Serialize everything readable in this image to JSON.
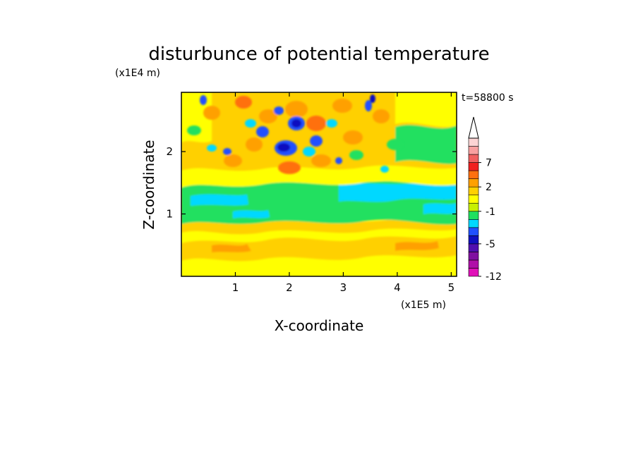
{
  "chart_data": {
    "type": "heatmap",
    "title": "disturbunce of potential temperature",
    "xlabel": "X-coordinate",
    "ylabel": "Z-coordinate",
    "x_unit_label": "(x1E5 m)",
    "y_unit_label": "(x1E4 m)",
    "time_label": "t=58800 s",
    "xlim": [
      0,
      5.1
    ],
    "ylim": [
      0,
      2.95
    ],
    "x_ticks": [
      1,
      2,
      3,
      4,
      5
    ],
    "y_ticks": [
      1,
      2
    ],
    "x_tick_labels": [
      "1",
      "2",
      "3",
      "4",
      "5"
    ],
    "y_tick_labels": [
      "1",
      "2"
    ],
    "colorbar": {
      "levels": [
        -12,
        -10,
        -9,
        -7,
        -5,
        -4,
        -3,
        -2,
        -1,
        0,
        1,
        2,
        3,
        5,
        7,
        8,
        9
      ],
      "colors": [
        "#e010b8",
        "#b010a8",
        "#8010a0",
        "#5010b0",
        "#1010c0",
        "#2050ff",
        "#00d8ff",
        "#20e060",
        "#c8f000",
        "#ffff00",
        "#ffd000",
        "#ffa000",
        "#ff7010",
        "#f02020",
        "#f06060",
        "#f8a0a0",
        "#fcd4d4"
      ],
      "tick_labels": [
        "-12",
        "-5",
        "-1",
        "2",
        "7"
      ],
      "tick_values": [
        -12,
        -5,
        -1,
        2,
        7
      ],
      "extend": "max"
    }
  }
}
